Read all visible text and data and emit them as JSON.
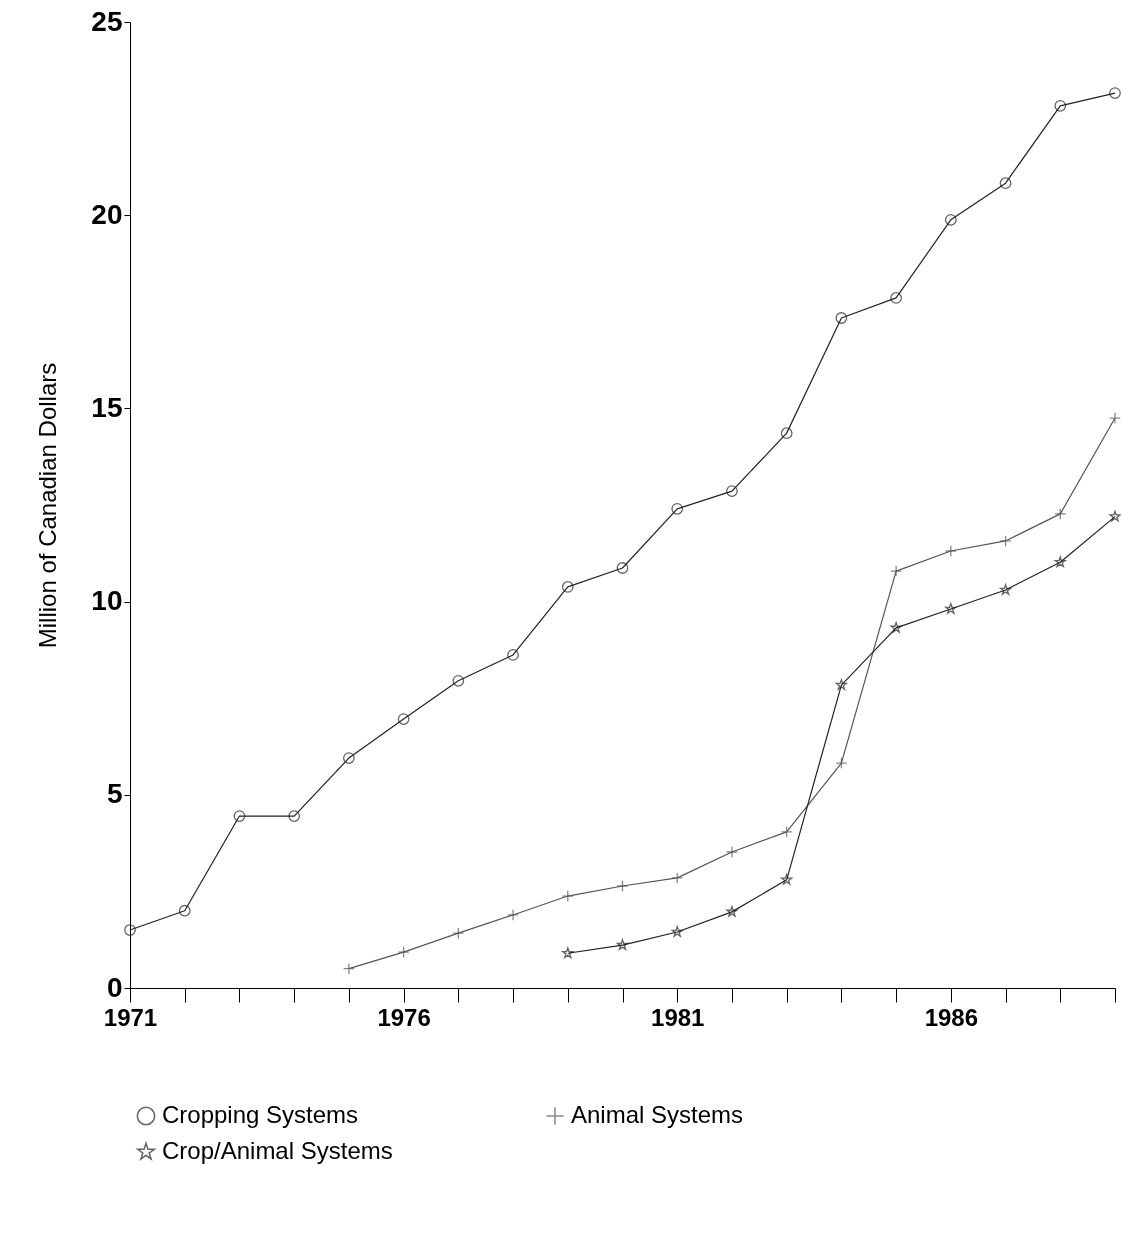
{
  "chart_data": {
    "type": "line",
    "ylabel": "Million of Canadian Dollars",
    "x": [
      1971,
      1972,
      1973,
      1974,
      1975,
      1976,
      1977,
      1978,
      1979,
      1980,
      1981,
      1982,
      1983,
      1984,
      1985,
      1986,
      1987,
      1988,
      1989
    ],
    "series": [
      {
        "name": "Cropping Systems",
        "color": "#222222",
        "marker": "circle",
        "values": [
          1.5,
          2.0,
          4.45,
          4.45,
          5.95,
          6.96,
          7.95,
          8.62,
          10.38,
          10.87,
          12.4,
          12.86,
          14.36,
          17.34,
          17.86,
          19.88,
          20.83,
          22.83,
          23.16
        ]
      },
      {
        "name": "Animal Systems",
        "color": "#555555",
        "marker": "cross",
        "values": [
          null,
          null,
          null,
          null,
          0.5,
          0.93,
          1.42,
          1.89,
          2.38,
          2.64,
          2.85,
          3.52,
          4.04,
          5.82,
          10.79,
          11.31,
          11.57,
          12.27,
          14.75
        ]
      },
      {
        "name": "Crop/Animal Systems",
        "color": "#222222",
        "marker": "star",
        "values": [
          null,
          null,
          null,
          null,
          null,
          null,
          null,
          null,
          0.9,
          1.11,
          1.45,
          1.97,
          2.8,
          7.84,
          9.32,
          9.81,
          10.3,
          11.02,
          12.2
        ]
      }
    ],
    "xlim": [
      1971,
      1989
    ],
    "xticks": [
      1971,
      {
        "value": 1972,
        "label": null
      },
      {
        "value": 1973,
        "label": null
      },
      {
        "value": 1974,
        "label": null
      },
      {
        "value": 1975,
        "label": null
      },
      1976,
      {
        "value": 1977,
        "label": null
      },
      {
        "value": 1978,
        "label": null
      },
      {
        "value": 1979,
        "label": null
      },
      {
        "value": 1980,
        "label": null
      },
      1981,
      {
        "value": 1982,
        "label": null
      },
      {
        "value": 1983,
        "label": null
      },
      {
        "value": 1984,
        "label": null
      },
      {
        "value": 1985,
        "label": null
      },
      1986,
      {
        "value": 1987,
        "label": null
      },
      {
        "value": 1988,
        "label": null
      },
      {
        "value": 1989,
        "label": null
      }
    ],
    "ylim": [
      0,
      25
    ],
    "yticks": [
      0,
      5,
      10,
      15,
      20,
      25
    ],
    "grid": false,
    "legend": "bottom",
    "line_style": "solid"
  }
}
